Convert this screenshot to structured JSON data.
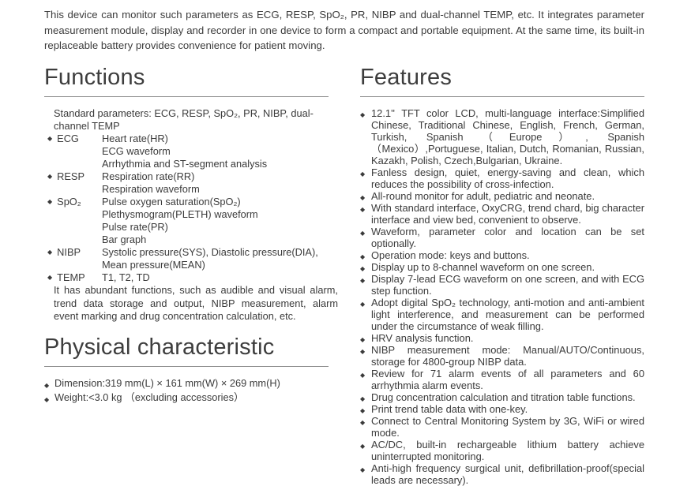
{
  "ui": {
    "bullet_glyph": "◆"
  },
  "intro": "This device can monitor such parameters as ECG, RESP, SpO₂, PR, NIBP and dual-channel TEMP, etc. It integrates parameter measurement module, display and recorder in one device to form a compact and portable equipment. At the same time, its built-in replaceable battery provides convenience for patient moving.",
  "functions": {
    "title": "Functions",
    "standard_note": "Standard parameters: ECG, RESP, SpO₂, PR, NIBP, dual-channel TEMP",
    "items": [
      {
        "term": "ECG",
        "lines": [
          "Heart rate(HR)",
          "ECG waveform",
          "Arrhythmia and ST-segment analysis"
        ]
      },
      {
        "term": "RESP",
        "lines": [
          "Respiration rate(RR)",
          "Respiration waveform"
        ]
      },
      {
        "term": "SpO₂",
        "lines": [
          "Pulse oxygen saturation(SpO₂)",
          "Plethysmogram(PLETH) waveform",
          "Pulse rate(PR)",
          "Bar graph"
        ]
      },
      {
        "term": "NIBP",
        "lines": [
          "Systolic pressure(SYS), Diastolic pressure(DIA), Mean pressure(MEAN)"
        ]
      },
      {
        "term": "TEMP",
        "lines": [
          "T1, T2, TD"
        ]
      }
    ],
    "summary": "It has abundant functions, such as audible and visual alarm, trend data storage and output, NIBP measurement, alarm event marking and drug concentration calculation, etc."
  },
  "physical": {
    "title": "Physical characteristic",
    "items": [
      "Dimension:319 mm(L) × 161 mm(W) × 269 mm(H)",
      "Weight:<3.0 kg （excluding accessories）"
    ]
  },
  "features": {
    "title": "Features",
    "items": [
      "12.1'' TFT color LCD, multi-language interface:Simplified Chinese, Traditional Chinese, English, French, German, Turkish, Spanish （Europe）, Spanish （Mexico）,Portuguese, Italian, Dutch, Romanian, Russian, Kazakh, Polish, Czech,Bulgarian, Ukraine.",
      "Fanless design, quiet, energy-saving and clean, which reduces the possibility of cross-infection.",
      "All-round monitor for adult, pediatric and neonate.",
      "With standard interface, OxyCRG, trend chard, big character interface and view bed, convenient to observe.",
      "Waveform, parameter color and location can be set optionally.",
      "Operation mode: keys and buttons.",
      "Display up to 8-channel waveform on one screen.",
      "Display 7-lead ECG waveform on one screen, and with ECG step function.",
      "Adopt digital SpO₂ technology, anti-motion and anti-ambient light interference, and measurement can be performed under the circumstance of weak filling.",
      "HRV analysis function.",
      "NIBP measurement mode: Manual/AUTO/Continuous, storage for 4800-group NIBP data.",
      "Review for 71 alarm events of all parameters and 60 arrhythmia alarm events.",
      "Drug concentration calculation and titration table functions.",
      "Print trend table data with one-key.",
      "Connect to Central Monitoring System by 3G, WiFi or wired mode.",
      "AC/DC, built-in rechargeable lithium battery achieve uninterrupted monitoring.",
      "Anti-high frequency surgical unit, defibrillation-proof(special leads are necessary)."
    ]
  }
}
